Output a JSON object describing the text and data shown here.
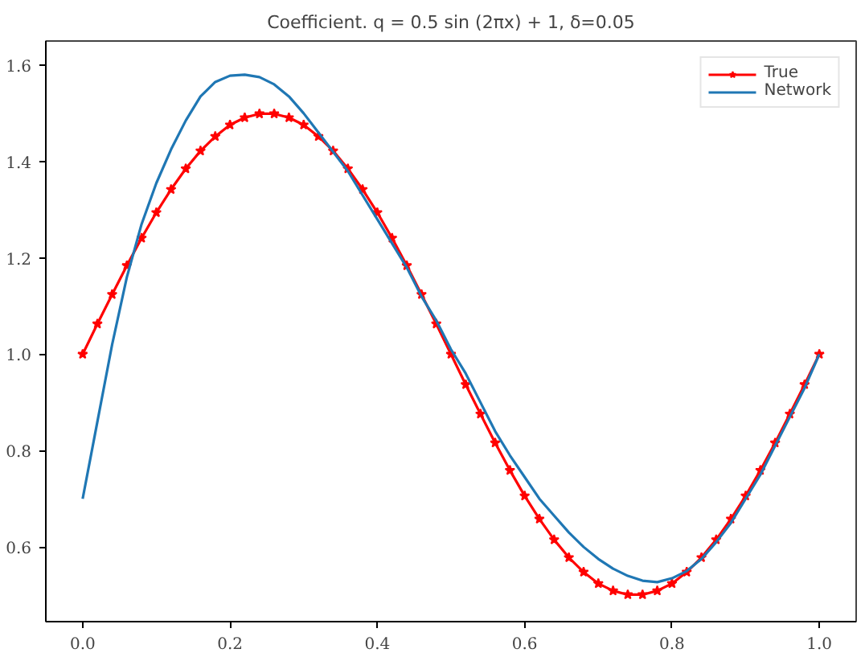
{
  "chart_data": {
    "type": "line",
    "title": "Coefficient. q = 0.5 sin (2πx) + 1, δ=0.05",
    "legend": "top right",
    "grid": false,
    "xlim": [
      -0.05,
      1.05
    ],
    "ylim": [
      0.445,
      1.65
    ],
    "xticks": [
      {
        "value": 0,
        "label": "0.0"
      },
      0.2,
      0.4,
      0.6,
      0.8,
      {
        "value": 1,
        "label": "1.0"
      }
    ],
    "yticks": [
      0.6,
      0.8,
      {
        "value": 1,
        "label": "1.0"
      },
      1.2,
      1.4,
      1.6
    ],
    "series": [
      {
        "name": "True",
        "color": "#ff0000",
        "marker": "star",
        "x": [
          0,
          0.02,
          0.04,
          0.06,
          0.08,
          0.1,
          0.12,
          0.14,
          0.16,
          0.18,
          0.2,
          0.22,
          0.24,
          0.26,
          0.28,
          0.3,
          0.32,
          0.34,
          0.36,
          0.38,
          0.4,
          0.42,
          0.44,
          0.46,
          0.48,
          0.5,
          0.52,
          0.54,
          0.56,
          0.58,
          0.6,
          0.62,
          0.64,
          0.66,
          0.68,
          0.7,
          0.72,
          0.74,
          0.76,
          0.78,
          0.8,
          0.82,
          0.84,
          0.86,
          0.88,
          0.9,
          0.92,
          0.94,
          0.96,
          0.98,
          1
        ],
        "values": [
          1.0,
          1.063,
          1.124,
          1.184,
          1.241,
          1.294,
          1.342,
          1.385,
          1.422,
          1.452,
          1.476,
          1.491,
          1.499,
          1.499,
          1.491,
          1.476,
          1.452,
          1.422,
          1.385,
          1.342,
          1.294,
          1.241,
          1.184,
          1.124,
          1.063,
          1.0,
          0.937,
          0.876,
          0.816,
          0.759,
          0.706,
          0.658,
          0.615,
          0.578,
          0.548,
          0.524,
          0.509,
          0.501,
          0.501,
          0.509,
          0.524,
          0.548,
          0.578,
          0.615,
          0.658,
          0.706,
          0.759,
          0.816,
          0.876,
          0.937,
          1.0
        ]
      },
      {
        "name": "Network",
        "color": "#1f77b4",
        "marker": "none",
        "x": [
          0,
          0.02,
          0.04,
          0.06,
          0.08,
          0.1,
          0.12,
          0.14,
          0.16,
          0.18,
          0.2,
          0.22,
          0.24,
          0.26,
          0.28,
          0.3,
          0.32,
          0.34,
          0.36,
          0.38,
          0.4,
          0.42,
          0.44,
          0.46,
          0.48,
          0.5,
          0.52,
          0.54,
          0.56,
          0.58,
          0.6,
          0.62,
          0.64,
          0.66,
          0.68,
          0.7,
          0.72,
          0.74,
          0.76,
          0.78,
          0.8,
          0.82,
          0.84,
          0.86,
          0.88,
          0.9,
          0.92,
          0.94,
          0.96,
          0.98,
          1
        ],
        "values": [
          0.7,
          0.86,
          1.02,
          1.16,
          1.27,
          1.355,
          1.425,
          1.485,
          1.535,
          1.565,
          1.578,
          1.58,
          1.575,
          1.56,
          1.535,
          1.5,
          1.46,
          1.42,
          1.38,
          1.33,
          1.28,
          1.23,
          1.18,
          1.12,
          1.07,
          1.01,
          0.96,
          0.9,
          0.84,
          0.79,
          0.745,
          0.7,
          0.665,
          0.63,
          0.6,
          0.575,
          0.555,
          0.54,
          0.53,
          0.527,
          0.535,
          0.55,
          0.575,
          0.61,
          0.65,
          0.7,
          0.75,
          0.81,
          0.87,
          0.93,
          1.0
        ]
      }
    ]
  }
}
